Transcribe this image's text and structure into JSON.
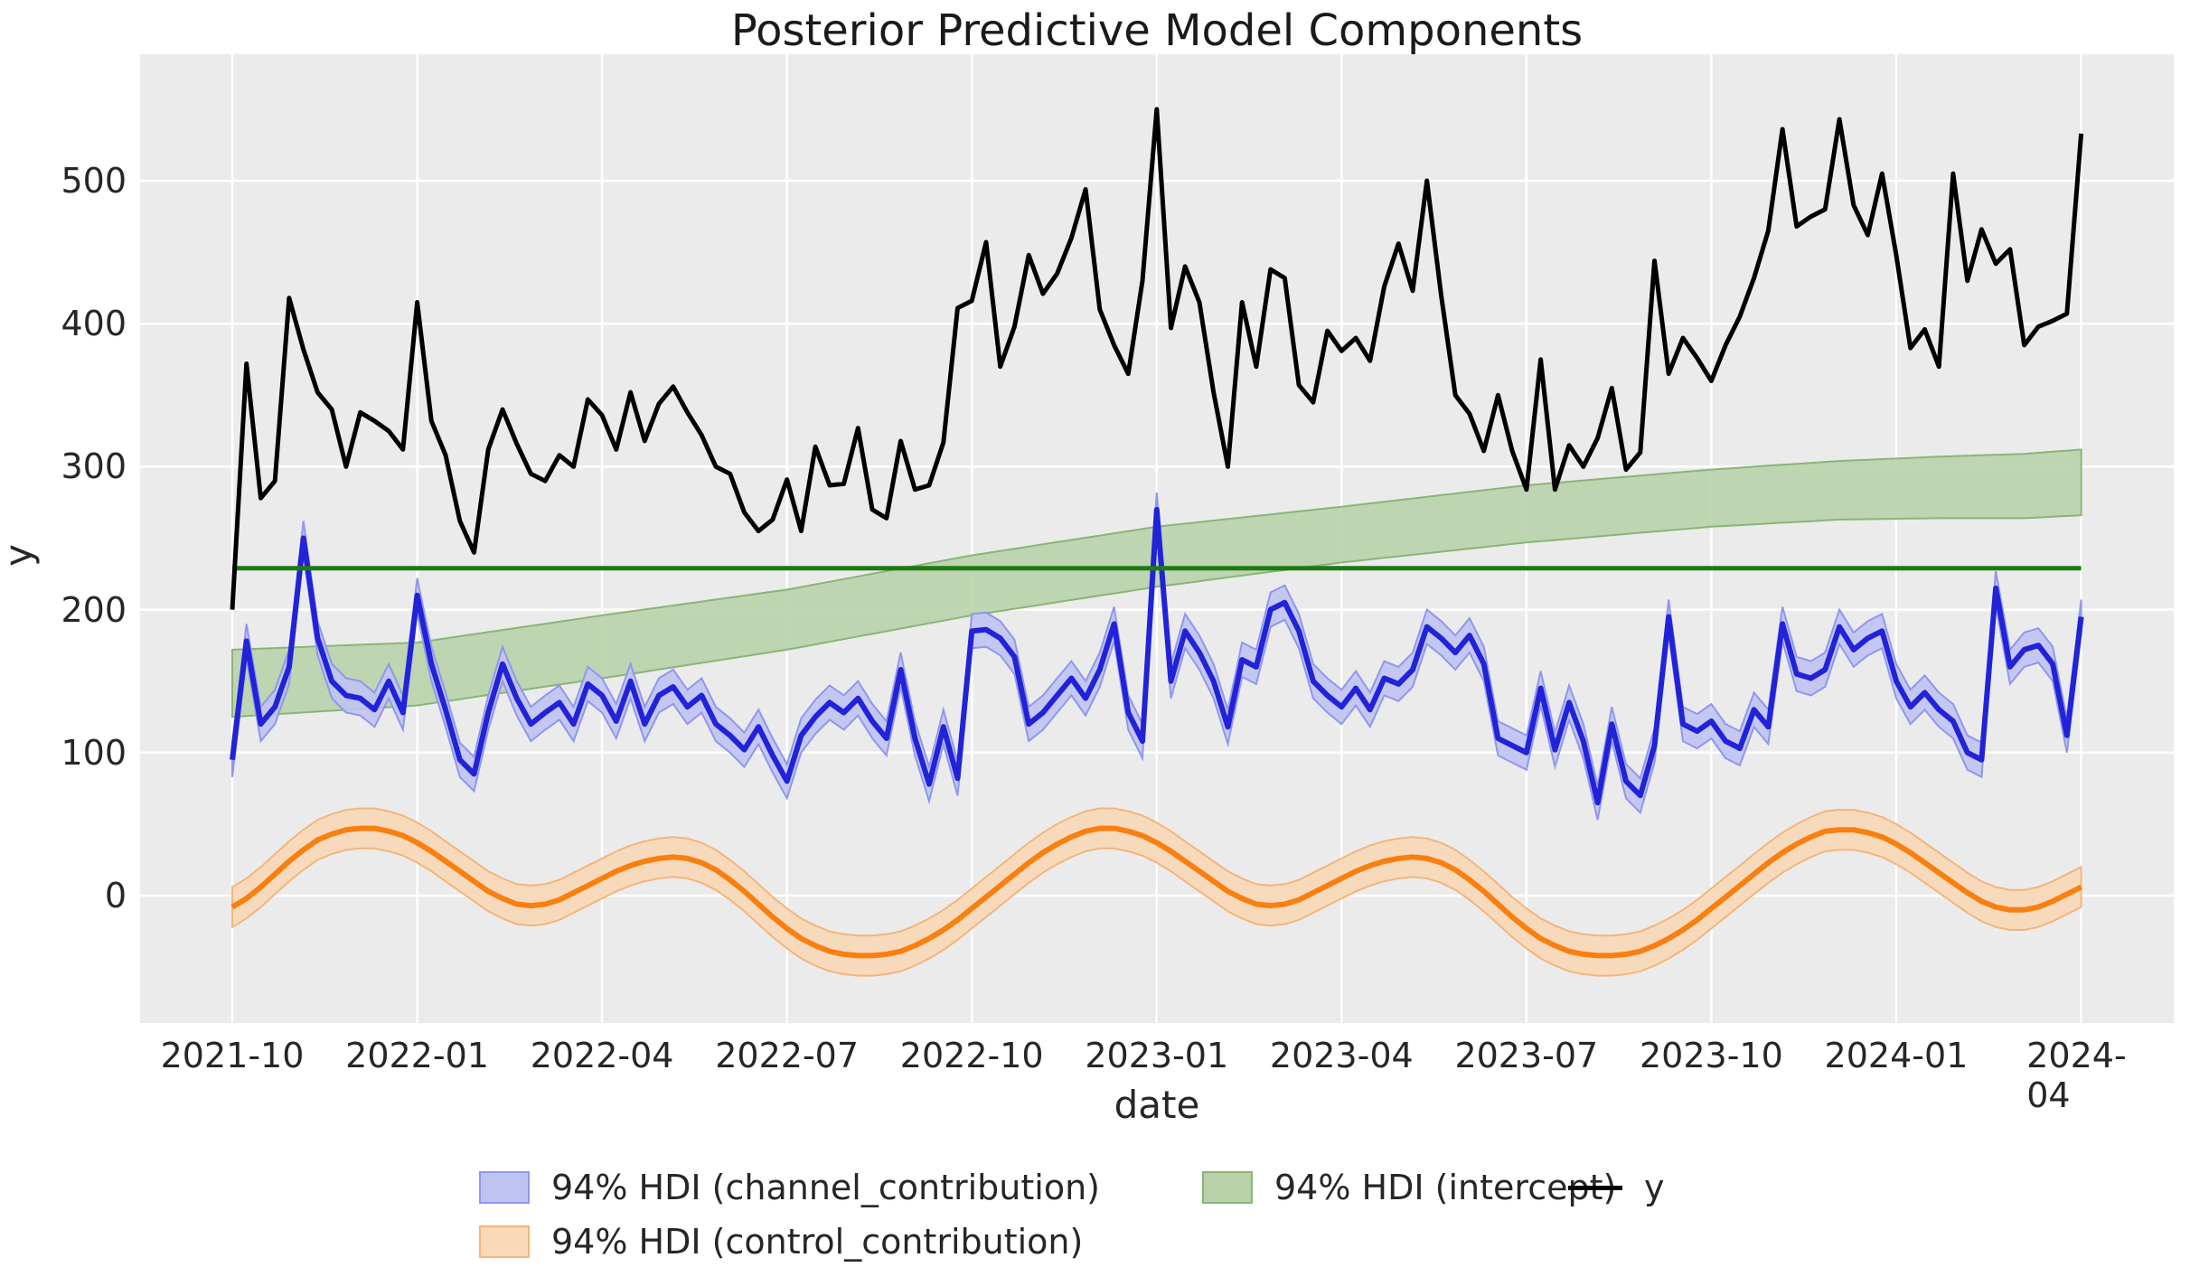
{
  "title": "Posterior Predictive Model Components",
  "xlabel": "date",
  "ylabel": "y",
  "legend": {
    "channel": "94% HDI (channel_contribution)",
    "control": "94% HDI (control_contribution)",
    "intercept": "94% HDI (intercept)",
    "y": "y"
  },
  "colors": {
    "background": "#ffffff",
    "axes_background": "#ebebeb",
    "grid": "#ffffff",
    "text": "#262626",
    "y_line": "#000000",
    "channel_line": "#2222d8",
    "channel_band_fill": "#bfc3f2",
    "channel_band_edge": "#9097ec",
    "control_line": "#f97f10",
    "control_band_fill": "#f8d9b8",
    "control_band_edge": "#f3b57c",
    "intercept_band_fill": "#b8d3aa",
    "intercept_band_edge": "#8ab578",
    "intercept_line": "#1d7a12"
  },
  "chart_data": {
    "type": "line",
    "title": "Posterior Predictive Model Components",
    "xlabel": "date",
    "ylabel": "y",
    "x_start_date": "2021-10-02",
    "x_frequency": "weekly",
    "n_points": 131,
    "ylim": [
      -90,
      588
    ],
    "grid": true,
    "legend_position": "bottom",
    "x_tick_labels": [
      "2021-10",
      "2022-01",
      "2022-04",
      "2022-07",
      "2022-10",
      "2023-01",
      "2023-04",
      "2023-07",
      "2023-10",
      "2024-01",
      "2024-04"
    ],
    "y_tick_values": [
      0,
      100,
      200,
      300,
      400,
      500
    ],
    "series": [
      {
        "name": "y",
        "style": "line",
        "values": [
          200,
          372,
          278,
          290,
          418,
          382,
          352,
          340,
          300,
          338,
          332,
          325,
          312,
          415,
          332,
          308,
          262,
          240,
          312,
          340,
          316,
          295,
          290,
          308,
          300,
          347,
          336,
          312,
          352,
          318,
          344,
          356,
          338,
          322,
          300,
          295,
          268,
          255,
          263,
          291,
          255,
          314,
          287,
          288,
          327,
          270,
          264,
          318,
          284,
          287,
          317,
          411,
          416,
          457,
          370,
          398,
          448,
          421,
          435,
          460,
          494,
          410,
          385,
          365,
          430,
          550,
          397,
          440,
          415,
          352,
          300,
          415,
          370,
          438,
          432,
          357,
          345,
          395,
          381,
          390,
          374,
          426,
          456,
          423,
          500,
          420,
          350,
          337,
          311,
          350,
          311,
          284,
          375,
          284,
          315,
          300,
          320,
          355,
          298,
          310,
          444,
          365,
          390,
          376,
          360,
          385,
          405,
          432,
          465,
          536,
          468,
          475,
          480,
          543,
          483,
          462,
          505,
          448,
          383,
          396,
          370,
          505,
          430,
          466,
          442,
          452,
          385,
          398,
          402,
          407,
          533
        ]
      },
      {
        "name": "channel_contribution",
        "style": "line_with_hdi_band",
        "hdi_label": "94% HDI",
        "hdi_halfwidth": 12,
        "values": [
          95,
          178,
          120,
          132,
          160,
          250,
          180,
          150,
          140,
          138,
          130,
          150,
          128,
          210,
          162,
          130,
          95,
          85,
          128,
          162,
          138,
          120,
          128,
          135,
          120,
          148,
          140,
          122,
          150,
          120,
          140,
          146,
          132,
          140,
          120,
          112,
          102,
          118,
          98,
          80,
          112,
          125,
          135,
          128,
          138,
          122,
          110,
          158,
          110,
          78,
          118,
          82,
          185,
          186,
          180,
          167,
          120,
          128,
          140,
          152,
          138,
          158,
          190,
          128,
          108,
          270,
          150,
          185,
          170,
          150,
          118,
          165,
          160,
          200,
          205,
          185,
          150,
          140,
          132,
          145,
          130,
          152,
          148,
          158,
          188,
          180,
          170,
          182,
          162,
          110,
          105,
          100,
          145,
          102,
          135,
          108,
          65,
          120,
          80,
          70,
          105,
          195,
          120,
          115,
          122,
          108,
          103,
          130,
          118,
          190,
          155,
          152,
          158,
          188,
          172,
          180,
          185,
          150,
          132,
          142,
          130,
          122,
          100,
          95,
          215,
          160,
          172,
          175,
          162,
          112,
          195
        ]
      },
      {
        "name": "control_contribution",
        "style": "line_with_hdi_band",
        "hdi_label": "94% HDI",
        "hdi_halfwidth": 14,
        "values": [
          -8,
          -2,
          6,
          15,
          24,
          32,
          39,
          43,
          46,
          47,
          47,
          45,
          42,
          37,
          31,
          24,
          17,
          10,
          3,
          -2,
          -6,
          -7,
          -6,
          -3,
          2,
          7,
          12,
          17,
          21,
          24,
          26,
          27,
          26,
          23,
          18,
          11,
          3,
          -6,
          -15,
          -23,
          -30,
          -35,
          -39,
          -41,
          -42,
          -42,
          -41,
          -39,
          -35,
          -30,
          -24,
          -17,
          -9,
          -1,
          7,
          15,
          23,
          30,
          36,
          41,
          45,
          47,
          47,
          45,
          42,
          37,
          31,
          24,
          17,
          10,
          3,
          -2,
          -6,
          -7,
          -6,
          -3,
          2,
          7,
          12,
          17,
          21,
          24,
          26,
          27,
          26,
          23,
          18,
          11,
          3,
          -6,
          -15,
          -23,
          -30,
          -35,
          -39,
          -41,
          -42,
          -42,
          -41,
          -39,
          -35,
          -30,
          -24,
          -17,
          -9,
          -1,
          7,
          15,
          23,
          30,
          36,
          41,
          45,
          46,
          46,
          44,
          41,
          36,
          30,
          23,
          16,
          9,
          2,
          -4,
          -8,
          -10,
          -10,
          -8,
          -4,
          1,
          6
        ]
      },
      {
        "name": "intercept",
        "style": "hdi_band",
        "hdi_label": "94% HDI",
        "anchor_weeks": [
          0,
          13,
          26,
          39,
          52,
          65,
          78,
          91,
          104,
          113,
          120,
          126,
          130
        ],
        "lower": [
          125,
          133,
          152,
          172,
          196,
          216,
          233,
          247,
          258,
          263,
          264,
          264,
          266
        ],
        "upper": [
          172,
          177,
          196,
          214,
          238,
          258,
          272,
          287,
          298,
          304,
          307,
          309,
          312
        ]
      },
      {
        "name": "intercept_mean",
        "style": "hline",
        "value": 229
      }
    ]
  }
}
